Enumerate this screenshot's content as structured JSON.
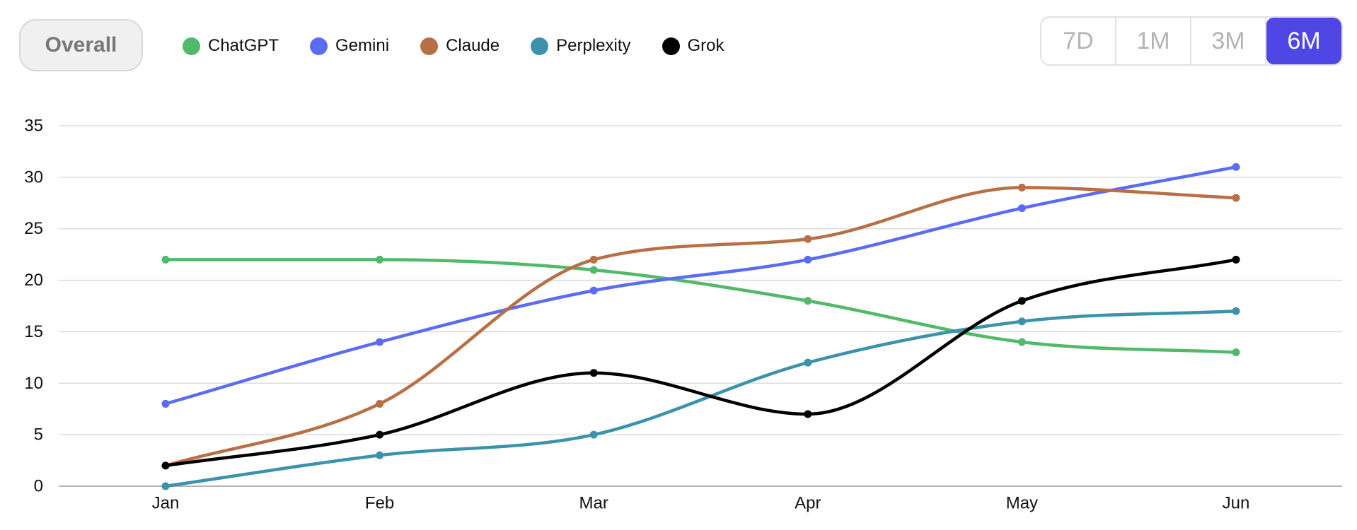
{
  "controls": {
    "overall_label": "Overall",
    "ranges": [
      {
        "label": "7D",
        "active": false
      },
      {
        "label": "1M",
        "active": false
      },
      {
        "label": "3M",
        "active": false
      },
      {
        "label": "6M",
        "active": true
      }
    ],
    "active_color": "#4f46e5"
  },
  "chart_data": {
    "type": "line",
    "title": "",
    "xlabel": "",
    "ylabel": "",
    "categories": [
      "Jan",
      "Feb",
      "Mar",
      "Apr",
      "May",
      "Jun"
    ],
    "ylim": [
      0,
      35
    ],
    "yticks": [
      0,
      5,
      10,
      15,
      20,
      25,
      30,
      35
    ],
    "grid": true,
    "legend_position": "top-left",
    "smooth": true,
    "series": [
      {
        "name": "ChatGPT",
        "color": "#52b96a",
        "values": [
          22,
          22,
          21,
          18,
          14,
          13
        ]
      },
      {
        "name": "Gemini",
        "color": "#5b6cf2",
        "values": [
          8,
          14,
          19,
          22,
          27,
          31
        ]
      },
      {
        "name": "Claude",
        "color": "#b86f45",
        "values": [
          2,
          8,
          22,
          24,
          29,
          28
        ]
      },
      {
        "name": "Perplexity",
        "color": "#3c92ab",
        "values": [
          0,
          3,
          5,
          12,
          16,
          17
        ]
      },
      {
        "name": "Grok",
        "color": "#000000",
        "values": [
          2,
          5,
          11,
          7,
          18,
          22
        ]
      }
    ]
  }
}
